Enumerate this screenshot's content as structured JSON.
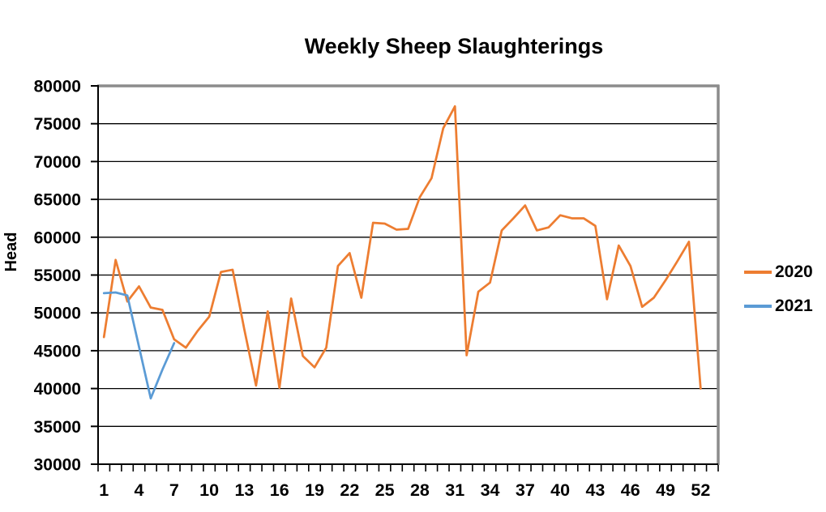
{
  "chart_data": {
    "type": "line",
    "title": "Weekly Sheep Slaughterings",
    "xlabel": "",
    "ylabel": "Head",
    "ylim": [
      30000,
      80000
    ],
    "ytick_step": 5000,
    "ytick_labels": [
      "80000",
      "75000",
      "70000",
      "65000",
      "60000",
      "55000",
      "50000",
      "45000",
      "40000",
      "35000",
      "30000"
    ],
    "xtick_labels": [
      "1",
      "4",
      "7",
      "10",
      "13",
      "16",
      "19",
      "22",
      "25",
      "28",
      "31",
      "34",
      "37",
      "40",
      "43",
      "46",
      "49",
      "52"
    ],
    "x": [
      1,
      2,
      3,
      4,
      5,
      6,
      7,
      8,
      9,
      10,
      11,
      12,
      13,
      14,
      15,
      16,
      17,
      18,
      19,
      20,
      21,
      22,
      23,
      24,
      25,
      26,
      27,
      28,
      29,
      30,
      31,
      32,
      33,
      34,
      35,
      36,
      37,
      38,
      39,
      40,
      41,
      42,
      43,
      44,
      45,
      46,
      47,
      48,
      49,
      50,
      51,
      52
    ],
    "series": [
      {
        "name": "2020",
        "color": "#ED7D31",
        "values": [
          46800,
          57000,
          51500,
          53500,
          50700,
          50400,
          46500,
          45400,
          47600,
          49500,
          55400,
          55700,
          47800,
          40400,
          50200,
          40100,
          51900,
          44300,
          42800,
          45400,
          56200,
          57900,
          52000,
          61900,
          61800,
          61000,
          61100,
          65300,
          67800,
          74400,
          77300,
          44400,
          52800,
          54000,
          60900,
          62500,
          64200,
          60900,
          61300,
          62900,
          62500,
          62500,
          61500,
          51800,
          58900,
          56200,
          50800,
          52000,
          54300,
          56800,
          59400,
          40000
        ]
      },
      {
        "name": "2021",
        "color": "#5B9BD5",
        "values": [
          52600,
          52700,
          52300,
          45500,
          38700,
          42500,
          46000
        ]
      }
    ],
    "grid": {
      "horizontal": true,
      "vertical": false,
      "color": "#000000"
    },
    "legend_position": "right",
    "colors": {
      "plot_border": "#8C8C8C",
      "axis_line": "#000000",
      "gridline": "#000000",
      "text": "#000000",
      "background": "#FFFFFF"
    }
  }
}
